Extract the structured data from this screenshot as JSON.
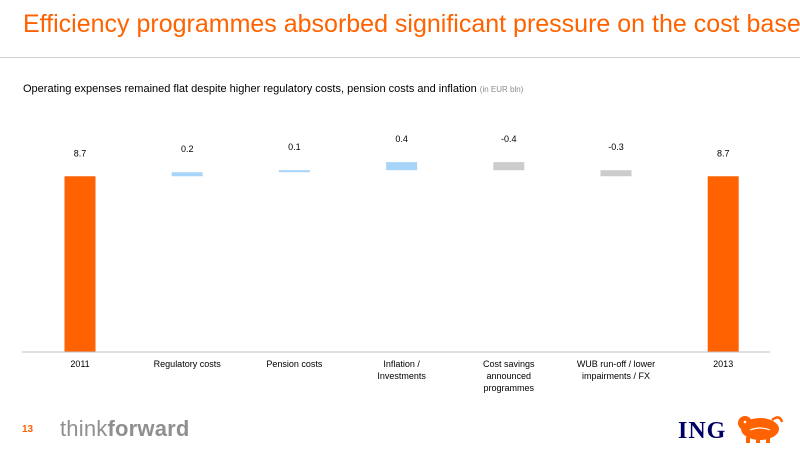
{
  "slide": {
    "title": "Efficiency programmes absorbed significant pressure on the cost base",
    "subtitle": "Operating expenses remained flat despite higher regulatory costs, pension costs and inflation",
    "unit_note": "(in EUR bln)"
  },
  "footer": {
    "page_number": "13",
    "brand_part1": "think",
    "brand_part2": "forward",
    "logo_text": "ING",
    "logo_icon": "lion-icon"
  },
  "colors": {
    "title": "#ff6200",
    "total_bar": "#ff6200",
    "increase_bar": "#a8d4f8",
    "decrease_bar": "#cccccc"
  },
  "chart_data": {
    "type": "bar",
    "subtype": "waterfall",
    "categories": [
      "2011",
      "Regulatory costs",
      "Pension costs",
      "Inflation / Investments",
      "Cost savings announced programmes",
      "WUB run-off / lower impairments / FX",
      "2013"
    ],
    "category_lines": [
      [
        "2011"
      ],
      [
        "Regulatory costs"
      ],
      [
        "Pension costs"
      ],
      [
        "Inflation /",
        "Investments"
      ],
      [
        "Cost savings",
        "announced",
        "programmes"
      ],
      [
        "WUB run-off / lower",
        "impairments / FX"
      ],
      [
        "2013"
      ]
    ],
    "values": [
      8.7,
      0.2,
      0.1,
      0.4,
      -0.4,
      -0.3,
      8.7
    ],
    "labels": [
      "8.7",
      "0.2",
      "0.1",
      "0.4",
      "-0.4",
      "-0.3",
      "8.7"
    ],
    "kinds": [
      "total",
      "increase",
      "increase",
      "increase",
      "decrease",
      "decrease",
      "total"
    ],
    "title": "Operating expenses remained flat despite higher regulatory costs, pension costs and inflation",
    "xlabel": "",
    "ylabel": "",
    "unit": "EUR bln",
    "grid": false
  }
}
